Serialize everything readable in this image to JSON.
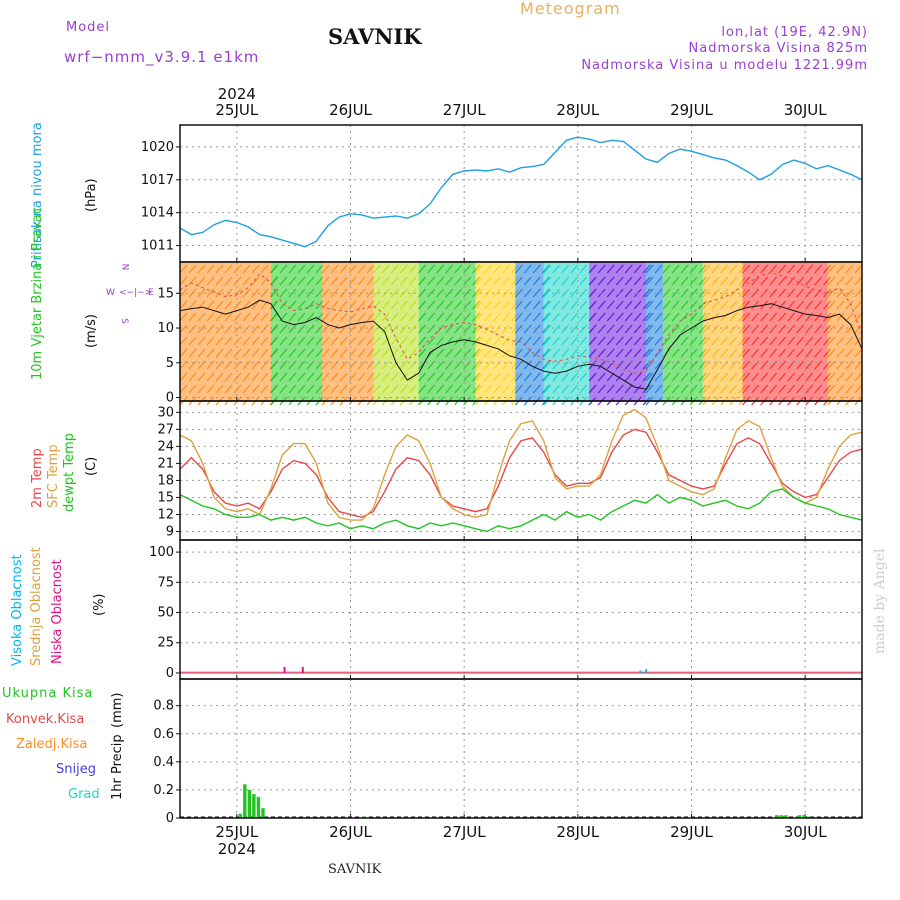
{
  "header": {
    "model_label": "Model",
    "model_name": "wrf−nmm_v3.9.1  e1km",
    "title": "SAVNIK",
    "chart_kind": "Meteogram",
    "coords": "lon,lat (19E, 42.9N)",
    "altitude": "Nadmorska Visina 825m",
    "model_altitude": "Nadmorska Visina u modelu 1221.99m"
  },
  "footer": {
    "station": "SAVNIK",
    "credit": "made by Angel"
  },
  "time_axis": {
    "year": "2024",
    "days": [
      "25JUL",
      "26JUL",
      "27JUL",
      "28JUL",
      "29JUL",
      "30JUL"
    ]
  },
  "colors": {
    "pressure": "#1ea0e0",
    "temp2m": "#e84848",
    "sfc_temp": "#e0a040",
    "dewpt": "#22c422",
    "precip": "#22c422",
    "high_cloud": "#00b8e8",
    "mid_cloud": "#e0a040",
    "low_cloud": "#e0108a"
  },
  "chart_data": [
    {
      "type": "line",
      "panel": "pressure",
      "title": "",
      "ylabel": "Pritisak na nivou mora",
      "unit": "(hPa)",
      "ylim": [
        1009.5,
        1022
      ],
      "yticks": [
        1011,
        1014,
        1017,
        1020
      ],
      "x": [
        24.5,
        24.6,
        24.7,
        24.8,
        24.9,
        25.0,
        25.1,
        25.2,
        25.3,
        25.4,
        25.5,
        25.6,
        25.7,
        25.8,
        25.9,
        26.0,
        26.1,
        26.2,
        26.3,
        26.4,
        26.5,
        26.6,
        26.7,
        26.8,
        26.9,
        27.0,
        27.1,
        27.2,
        27.3,
        27.4,
        27.5,
        27.6,
        27.7,
        27.8,
        27.9,
        28.0,
        28.1,
        28.2,
        28.3,
        28.4,
        28.5,
        28.6,
        28.7,
        28.8,
        28.9,
        29.0,
        29.1,
        29.2,
        29.3,
        29.4,
        29.5,
        29.6,
        29.7,
        29.8,
        29.9,
        30.0,
        30.1,
        30.2,
        30.3,
        30.4,
        30.5
      ],
      "series": [
        {
          "name": "",
          "values": [
            1012.6,
            1012.0,
            1012.2,
            1012.9,
            1013.3,
            1013.1,
            1012.7,
            1012.0,
            1011.8,
            1011.5,
            1011.2,
            1010.9,
            1011.4,
            1012.8,
            1013.6,
            1013.9,
            1013.8,
            1013.5,
            1013.6,
            1013.7,
            1013.5,
            1013.9,
            1014.8,
            1016.3,
            1017.5,
            1017.8,
            1017.9,
            1017.8,
            1018.0,
            1017.7,
            1018.1,
            1018.2,
            1018.4,
            1019.5,
            1020.6,
            1020.9,
            1020.7,
            1020.4,
            1020.6,
            1020.5,
            1019.7,
            1018.9,
            1018.6,
            1019.4,
            1019.8,
            1019.6,
            1019.3,
            1019.0,
            1018.8,
            1018.3,
            1017.7,
            1017.0,
            1017.5,
            1018.4,
            1018.8,
            1018.5,
            1018.0,
            1018.3,
            1017.9,
            1017.5,
            1017.0
          ]
        }
      ]
    },
    {
      "type": "line",
      "panel": "wind",
      "title": "",
      "ylabel": "10m Vjetar Brzina i Pravac",
      "unit": "(m/s)",
      "direction_legend": {
        "n": "N",
        "e": "E",
        "s": "S",
        "w": "W"
      },
      "ylim": [
        -0.5,
        19.5
      ],
      "yticks": [
        0,
        5,
        10,
        15
      ],
      "x": [
        24.5,
        24.6,
        24.7,
        24.8,
        24.9,
        25.0,
        25.1,
        25.2,
        25.3,
        25.4,
        25.5,
        25.6,
        25.7,
        25.8,
        25.9,
        26.0,
        26.1,
        26.2,
        26.3,
        26.4,
        26.5,
        26.6,
        26.7,
        26.8,
        26.9,
        27.0,
        27.1,
        27.2,
        27.3,
        27.4,
        27.5,
        27.6,
        27.7,
        27.8,
        27.9,
        28.0,
        28.1,
        28.2,
        28.3,
        28.4,
        28.5,
        28.6,
        28.7,
        28.8,
        28.9,
        29.0,
        29.1,
        29.2,
        29.3,
        29.4,
        29.5,
        29.6,
        29.7,
        29.8,
        29.9,
        30.0,
        30.1,
        30.2,
        30.3,
        30.4,
        30.5
      ],
      "series": [
        {
          "name": "",
          "values": [
            15.5,
            16.5,
            15.8,
            15.2,
            14.5,
            14.8,
            15.8,
            17.8,
            16.5,
            13.5,
            12.5,
            12.8,
            13.5,
            12.8,
            12.5,
            12.3,
            12.8,
            13.2,
            12.0,
            8.5,
            5.5,
            6.5,
            8.5,
            10.0,
            10.5,
            10.8,
            10.5,
            9.8,
            9.0,
            8.2,
            8.0,
            6.5,
            5.5,
            5.2,
            5.5,
            6.0,
            5.8,
            5.5,
            5.0,
            4.0,
            3.5,
            3.8,
            6.5,
            9.0,
            11.0,
            12.0,
            13.5,
            14.0,
            14.5,
            15.5,
            16.5,
            17.5,
            18.0,
            17.5,
            17.0,
            16.0,
            15.5,
            15.0,
            15.8,
            13.5,
            9.0
          ]
        },
        {
          "name": "",
          "values": [
            12.5,
            12.8,
            13.0,
            12.5,
            12.0,
            12.5,
            13.0,
            14.0,
            13.5,
            11.0,
            10.5,
            10.8,
            11.5,
            10.5,
            10.0,
            10.5,
            10.8,
            11.0,
            9.5,
            5.0,
            2.5,
            3.5,
            6.5,
            7.5,
            8.0,
            8.3,
            8.0,
            7.5,
            7.0,
            6.0,
            5.5,
            4.5,
            3.8,
            3.5,
            3.8,
            4.5,
            4.8,
            4.5,
            3.5,
            2.5,
            1.5,
            1.2,
            4.0,
            7.0,
            9.0,
            10.0,
            11.0,
            11.5,
            11.8,
            12.5,
            13.0,
            13.2,
            13.5,
            13.0,
            12.5,
            12.0,
            11.8,
            11.5,
            12.0,
            10.5,
            7.0
          ]
        }
      ],
      "direction_bands": [
        {
          "from": 24.5,
          "to": 25.3,
          "color": "#ff8c1a"
        },
        {
          "from": 25.3,
          "to": 25.75,
          "color": "#22cc22"
        },
        {
          "from": 25.75,
          "to": 26.2,
          "color": "#ff8c1a"
        },
        {
          "from": 26.2,
          "to": 26.6,
          "color": "#b8e01a"
        },
        {
          "from": 26.6,
          "to": 27.1,
          "color": "#22cc22"
        },
        {
          "from": 27.1,
          "to": 27.45,
          "color": "#ffd21a"
        },
        {
          "from": 27.45,
          "to": 27.7,
          "color": "#1a7fe0"
        },
        {
          "from": 27.7,
          "to": 28.1,
          "color": "#1ad7c8"
        },
        {
          "from": 28.1,
          "to": 28.6,
          "color": "#6a1ae0"
        },
        {
          "from": 28.6,
          "to": 28.75,
          "color": "#1a7fe0"
        },
        {
          "from": 28.75,
          "to": 29.1,
          "color": "#22cc22"
        },
        {
          "from": 29.1,
          "to": 29.45,
          "color": "#ffb41a"
        },
        {
          "from": 29.45,
          "to": 30.2,
          "color": "#ff3030"
        },
        {
          "from": 30.2,
          "to": 30.5,
          "color": "#ff8c1a"
        }
      ]
    },
    {
      "type": "line",
      "panel": "temperature",
      "title": "",
      "ylabel_lines": [
        "2m Temp",
        "SFC Temp",
        "dewpt Temp"
      ],
      "unit": "(C)",
      "ylim": [
        7.5,
        32
      ],
      "yticks": [
        9,
        12,
        15,
        18,
        21,
        24,
        27,
        30
      ],
      "x": [
        24.5,
        24.6,
        24.7,
        24.8,
        24.9,
        25.0,
        25.1,
        25.2,
        25.3,
        25.4,
        25.5,
        25.6,
        25.7,
        25.8,
        25.9,
        26.0,
        26.1,
        26.2,
        26.3,
        26.4,
        26.5,
        26.6,
        26.7,
        26.8,
        26.9,
        27.0,
        27.1,
        27.2,
        27.3,
        27.4,
        27.5,
        27.6,
        27.7,
        27.8,
        27.9,
        28.0,
        28.1,
        28.2,
        28.3,
        28.4,
        28.5,
        28.6,
        28.7,
        28.8,
        28.9,
        29.0,
        29.1,
        29.2,
        29.3,
        29.4,
        29.5,
        29.6,
        29.7,
        29.8,
        29.9,
        30.0,
        30.1,
        30.2,
        30.3,
        30.4,
        30.5
      ],
      "series": [
        {
          "name": "2m Temp",
          "values": [
            20.0,
            22.0,
            20.0,
            16.0,
            14.0,
            13.5,
            14.0,
            13.0,
            16.0,
            20.0,
            21.5,
            21.0,
            19.0,
            15.0,
            12.5,
            12.0,
            11.5,
            12.5,
            16.0,
            20.0,
            22.0,
            21.5,
            19.0,
            15.0,
            13.5,
            13.0,
            12.5,
            13.0,
            17.0,
            22.0,
            25.0,
            25.5,
            23.0,
            19.0,
            17.0,
            17.5,
            17.5,
            18.5,
            23.0,
            26.0,
            27.0,
            26.5,
            23.0,
            19.0,
            18.0,
            17.0,
            16.5,
            17.0,
            21.0,
            24.5,
            25.5,
            24.5,
            21.0,
            17.5,
            16.0,
            15.0,
            15.5,
            18.5,
            21.5,
            23.0,
            23.5
          ]
        },
        {
          "name": "SFC Temp",
          "values": [
            26.0,
            25.0,
            21.0,
            15.0,
            13.0,
            12.5,
            13.0,
            12.0,
            16.5,
            22.5,
            24.5,
            24.5,
            21.0,
            14.0,
            11.5,
            11.0,
            11.0,
            13.0,
            19.0,
            24.0,
            26.0,
            25.0,
            21.0,
            15.0,
            13.0,
            12.0,
            11.5,
            12.0,
            19.0,
            25.0,
            28.0,
            28.5,
            25.0,
            18.5,
            16.5,
            17.0,
            17.0,
            19.0,
            25.0,
            29.5,
            30.5,
            29.0,
            24.0,
            18.0,
            17.0,
            16.0,
            15.5,
            16.5,
            22.0,
            27.0,
            28.5,
            27.5,
            22.0,
            17.0,
            15.0,
            14.0,
            15.0,
            20.0,
            24.0,
            26.0,
            26.5
          ]
        },
        {
          "name": "dewpt Temp",
          "values": [
            15.5,
            14.5,
            13.5,
            13.0,
            12.0,
            11.5,
            11.5,
            12.0,
            11.0,
            11.5,
            11.0,
            11.5,
            10.5,
            10.0,
            10.5,
            9.5,
            10.0,
            9.5,
            10.5,
            11.0,
            10.0,
            9.5,
            10.5,
            10.0,
            10.5,
            10.0,
            9.5,
            9.0,
            10.0,
            9.5,
            10.0,
            11.0,
            12.0,
            11.0,
            12.5,
            11.5,
            12.0,
            11.0,
            12.5,
            13.5,
            14.5,
            14.0,
            15.5,
            14.0,
            15.0,
            14.5,
            13.5,
            14.0,
            14.5,
            13.5,
            13.0,
            14.0,
            16.0,
            16.5,
            15.0,
            14.0,
            13.5,
            13.0,
            12.0,
            11.5,
            11.0
          ]
        }
      ]
    },
    {
      "type": "bar",
      "panel": "cloud",
      "title": "",
      "ylabel_lines": [
        "Visoka Oblacnost",
        "Srednja Oblacnost",
        "Niska Oblacnost"
      ],
      "unit": "(%)",
      "ylim": [
        -5,
        110
      ],
      "yticks": [
        0,
        25,
        50,
        75,
        100
      ],
      "series": [
        {
          "name": "Visoka Oblacnost",
          "x": [
            28.55,
            28.6
          ],
          "values": [
            2,
            3
          ]
        },
        {
          "name": "Niska Oblacnost",
          "x": [
            25.42,
            25.58
          ],
          "values": [
            5,
            5
          ]
        }
      ]
    },
    {
      "type": "bar",
      "panel": "precipitation",
      "title": "",
      "ylabel": "1hr Precip",
      "unit": "(mm)",
      "legend_items": [
        "Ukupna Kisa",
        "Konvek.Kisa",
        "Zaledj.Kisa",
        "Snijeg",
        "Grad"
      ],
      "ylim": [
        0,
        0.99
      ],
      "yticks": [
        0,
        0.2,
        0.4,
        0.6,
        0.8
      ],
      "x": [
        25.03,
        25.07,
        25.11,
        25.15,
        25.19,
        25.23,
        26.12,
        29.75,
        29.79,
        29.83,
        29.95,
        29.99,
        30.03
      ],
      "series": [
        {
          "name": "Ukupna Kisa",
          "values": [
            0.03,
            0.24,
            0.2,
            0.17,
            0.15,
            0.07,
            0.01,
            0.02,
            0.02,
            0.02,
            0.02,
            0.02,
            0.01
          ]
        }
      ]
    }
  ]
}
